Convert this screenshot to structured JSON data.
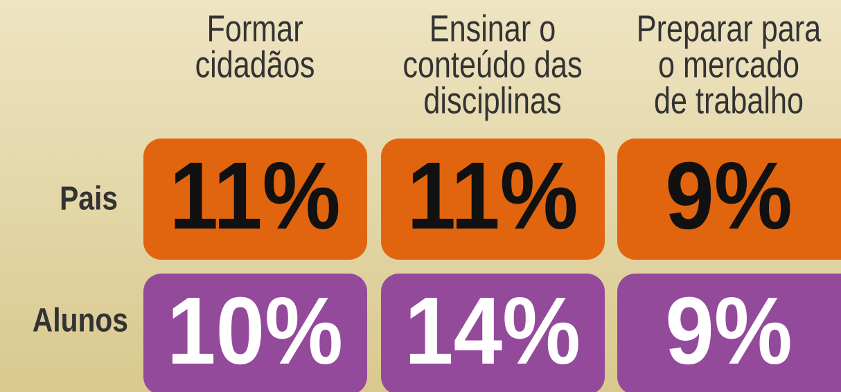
{
  "columns": [
    [
      "Formar",
      "cidadãos"
    ],
    [
      "Ensinar o",
      "conteúdo das",
      "disciplinas"
    ],
    [
      "Preparar para",
      "o mercado",
      "de trabalho"
    ]
  ],
  "rows": [
    {
      "label": "Pais",
      "cells": [
        "11%",
        "11%",
        "9%"
      ]
    },
    {
      "label": "Alunos",
      "cells": [
        "10%",
        "14%",
        "9%"
      ]
    }
  ]
}
